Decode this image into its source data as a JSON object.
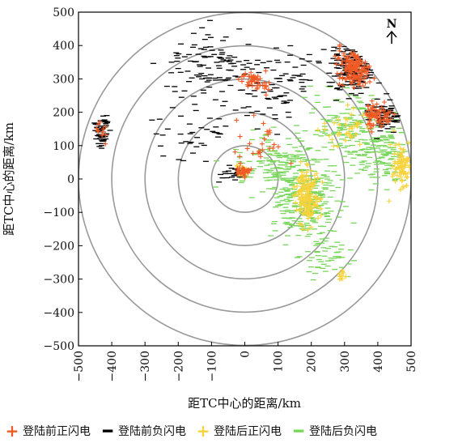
{
  "chart_data": {
    "type": "scatter",
    "xlabel": "距TC中心的距离/km",
    "ylabel": "距TC中心的距离/km",
    "xlim": [
      -500,
      500
    ],
    "ylim": [
      -500,
      500
    ],
    "x_ticks": [
      -500,
      -400,
      -300,
      -200,
      -100,
      0,
      100,
      200,
      300,
      400,
      500
    ],
    "y_ticks": [
      -500,
      -400,
      -300,
      -200,
      -100,
      0,
      100,
      200,
      300,
      400,
      500
    ],
    "x_tick_labels": [
      "−500",
      "−400",
      "−300",
      "−200",
      "−100",
      "0",
      "100",
      "200",
      "300",
      "400",
      "500"
    ],
    "y_tick_labels": [
      "−500",
      "−400",
      "−300",
      "−200",
      "−100",
      "0",
      "100",
      "200",
      "300",
      "400",
      "500"
    ],
    "range_rings_km": [
      100,
      200,
      300,
      400,
      500
    ],
    "north_label": "N",
    "series": [
      {
        "name": "登陆前正闪电",
        "marker": "+",
        "color": "#f05a24",
        "clusters": [
          {
            "center": [
              330,
              330
            ],
            "spread": [
              45,
              45
            ],
            "count": 160
          },
          {
            "center": [
              400,
              190
            ],
            "spread": [
              35,
              35
            ],
            "count": 70
          },
          {
            "center": [
              30,
              300
            ],
            "spread": [
              40,
              30
            ],
            "count": 45
          },
          {
            "center": [
              -5,
              25
            ],
            "spread": [
              18,
              15
            ],
            "count": 35
          },
          {
            "center": [
              -430,
              140
            ],
            "spread": [
              15,
              30
            ],
            "count": 12
          },
          {
            "center": [
              50,
              120
            ],
            "spread": [
              70,
              60
            ],
            "count": 25
          }
        ]
      },
      {
        "name": "登陆前负闪电",
        "marker": "−",
        "color": "#000000",
        "clusters": [
          {
            "center": [
              330,
              330
            ],
            "spread": [
              55,
              60
            ],
            "count": 180
          },
          {
            "center": [
              420,
              190
            ],
            "spread": [
              40,
              40
            ],
            "count": 80
          },
          {
            "center": [
              -430,
              140
            ],
            "spread": [
              18,
              35
            ],
            "count": 60
          },
          {
            "center": [
              -100,
              340
            ],
            "spread": [
              100,
              80
            ],
            "count": 110
          },
          {
            "center": [
              100,
              280
            ],
            "spread": [
              100,
              90
            ],
            "count": 90
          },
          {
            "center": [
              -30,
              20
            ],
            "spread": [
              30,
              25
            ],
            "count": 20
          },
          {
            "center": [
              -150,
              150
            ],
            "spread": [
              100,
              80
            ],
            "count": 40
          }
        ]
      },
      {
        "name": "登陆后正闪电",
        "marker": "+",
        "color": "#f7d23b",
        "clusters": [
          {
            "center": [
              190,
              -50
            ],
            "spread": [
              30,
              60
            ],
            "count": 150
          },
          {
            "center": [
              470,
              40
            ],
            "spread": [
              25,
              60
            ],
            "count": 80
          },
          {
            "center": [
              300,
              150
            ],
            "spread": [
              60,
              50
            ],
            "count": 40
          },
          {
            "center": [
              -10,
              20
            ],
            "spread": [
              15,
              15
            ],
            "count": 25
          },
          {
            "center": [
              290,
              -290
            ],
            "spread": [
              12,
              12
            ],
            "count": 10
          }
        ]
      },
      {
        "name": "登陆后负闪电",
        "marker": "−",
        "color": "#78d65a",
        "clusters": [
          {
            "center": [
              180,
              -60
            ],
            "spread": [
              90,
              110
            ],
            "count": 260
          },
          {
            "center": [
              330,
              150
            ],
            "spread": [
              110,
              100
            ],
            "count": 200
          },
          {
            "center": [
              100,
              40
            ],
            "spread": [
              120,
              70
            ],
            "count": 150
          },
          {
            "center": [
              430,
              60
            ],
            "spread": [
              50,
              70
            ],
            "count": 80
          },
          {
            "center": [
              240,
              -230
            ],
            "spread": [
              60,
              50
            ],
            "count": 50
          }
        ]
      }
    ]
  }
}
